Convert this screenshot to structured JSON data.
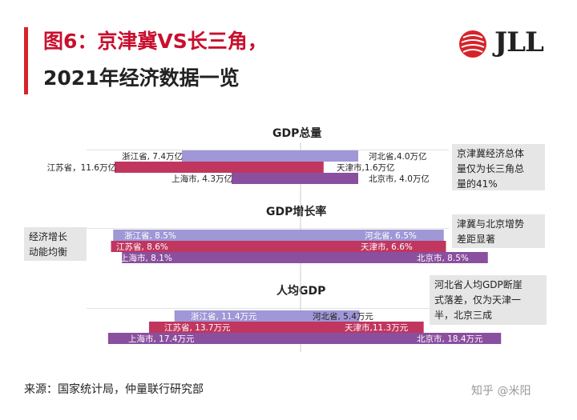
{
  "title": {
    "line1": "图6：京津冀VS长三角，",
    "line2": "2021年经济数据一览"
  },
  "logo": {
    "text": "JLL"
  },
  "colors": {
    "accent": "#d6232a",
    "zhejiang_hebei": "#9f97d6",
    "jiangsu_tianjin": "#c0365f",
    "shanghai_beijing": "#8a4f9e"
  },
  "sections": [
    {
      "title": "GDP总量",
      "note": [
        "京津冀经济总体",
        "量仅为长三角总",
        "量的41%"
      ]
    },
    {
      "title": "GDP增长率",
      "note_right": [
        "津冀与北京增势",
        "差距显著"
      ],
      "note_left": [
        "经济增长",
        "动能均衡"
      ]
    },
    {
      "title": "人均GDP",
      "note": [
        "河北省人均GDP断崖",
        "式落差，仅为天津一",
        "半，北京三成"
      ]
    }
  ],
  "chart_data": [
    {
      "type": "bar",
      "title": "GDP总量",
      "left_series": [
        {
          "categories": [
            "浙江省",
            "江苏省",
            "上海市"
          ],
          "values": [
            7.4,
            11.6,
            4.3
          ],
          "labels": [
            "浙江省, 7.4万亿",
            "江苏省，11.6万亿",
            "上海市, 4.3万亿"
          ]
        }
      ],
      "right_series": [
        {
          "categories": [
            "河北省",
            "天津市",
            "北京市"
          ],
          "values": [
            4.0,
            1.6,
            4.0
          ],
          "labels": [
            "河北省,4.0万亿",
            "天津市,1.6万亿",
            "北京市, 4.0万亿"
          ]
        }
      ]
    },
    {
      "type": "bar",
      "title": "GDP增长率",
      "left_series": [
        {
          "categories": [
            "浙江省",
            "江苏省",
            "上海市"
          ],
          "values": [
            8.5,
            8.6,
            8.1
          ],
          "labels": [
            "浙江省, 8.5%",
            "江苏省, 8.6%",
            "上海市, 8.1%"
          ]
        }
      ],
      "right_series": [
        {
          "categories": [
            "河北省",
            "天津市",
            "北京市"
          ],
          "values": [
            6.5,
            6.6,
            8.5
          ],
          "labels": [
            "河北省, 6.5%",
            "天津市, 6.6%",
            "北京市, 8.5%"
          ]
        }
      ]
    },
    {
      "type": "bar",
      "title": "人均GDP",
      "left_series": [
        {
          "categories": [
            "浙江省",
            "江苏省",
            "上海市"
          ],
          "values": [
            11.4,
            13.7,
            17.4
          ],
          "labels": [
            "浙江省, 11.4万元",
            "江苏省, 13.7万元",
            "上海市, 17.4万元"
          ]
        }
      ],
      "right_series": [
        {
          "categories": [
            "河北省",
            "天津市",
            "北京市"
          ],
          "values": [
            5.4,
            11.3,
            18.4
          ],
          "labels": [
            "河北省, 5.4万元",
            "天津市,11.3万元",
            "北京市, 18.4万元"
          ]
        }
      ]
    }
  ],
  "source": "来源：国家统计局，仲量联行研究部",
  "watermark": "知乎 @米阳"
}
